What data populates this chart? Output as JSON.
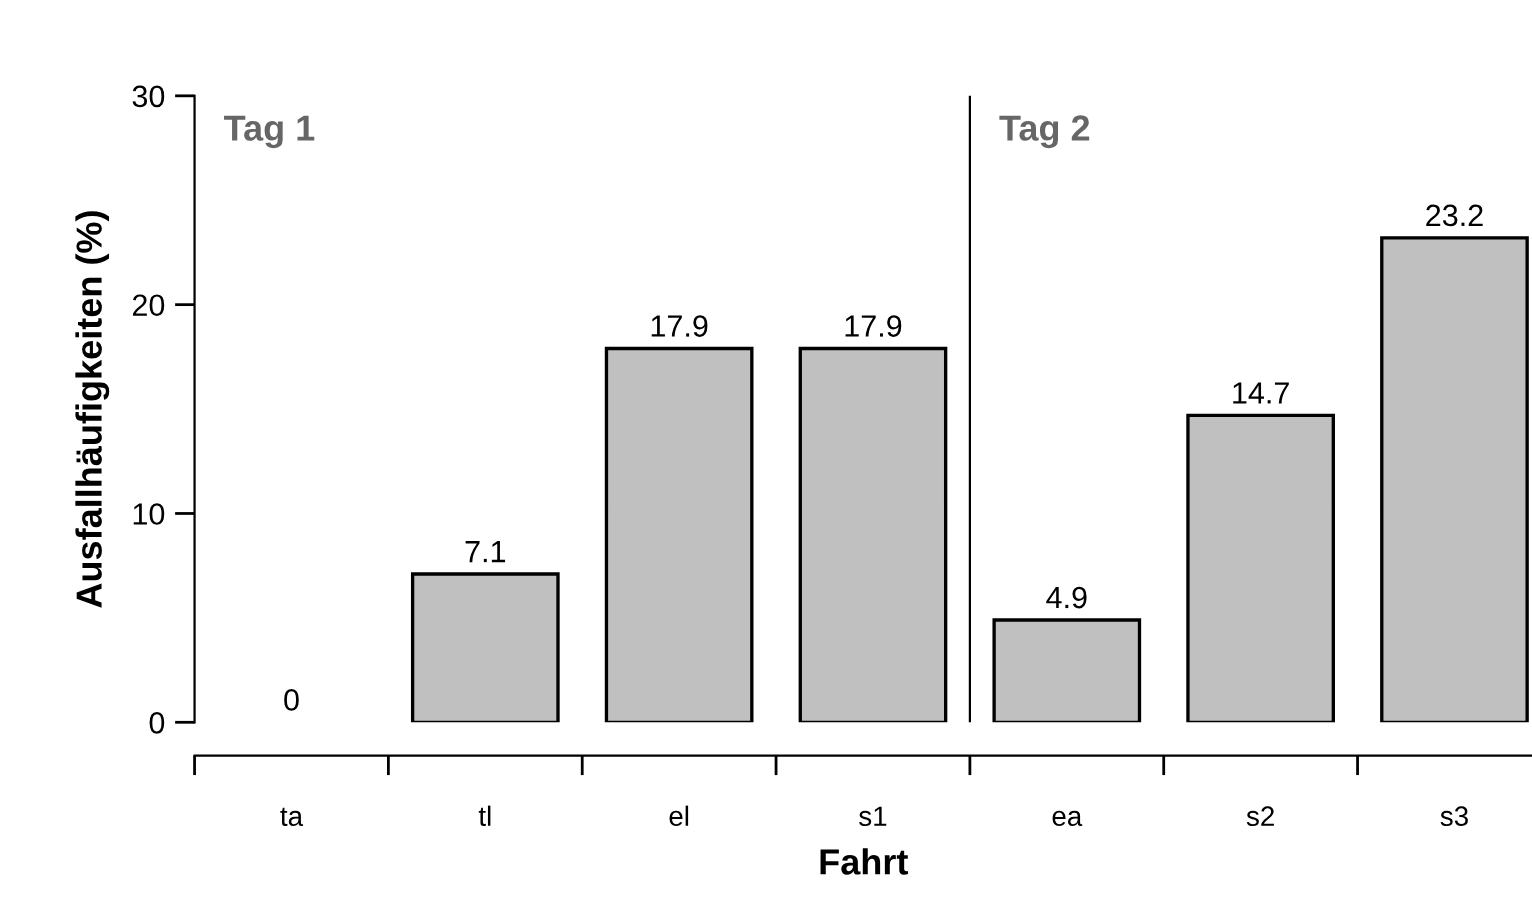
{
  "chart_data": {
    "type": "bar",
    "xlabel": "Fahrt",
    "ylabel": "Ausfallhäufigkeiten (%)",
    "categories": [
      "ta",
      "tl",
      "el",
      "s1",
      "ea",
      "s2",
      "s3"
    ],
    "values": [
      0,
      7.1,
      17.9,
      17.9,
      4.9,
      14.7,
      23.2
    ],
    "color": "#c0c0c0",
    "ylim": [
      0,
      30
    ],
    "yticks": [
      0,
      10,
      20,
      30
    ],
    "grid": false,
    "data_labels": true,
    "annotations": [
      "Tag 1",
      "Tag 2"
    ]
  }
}
